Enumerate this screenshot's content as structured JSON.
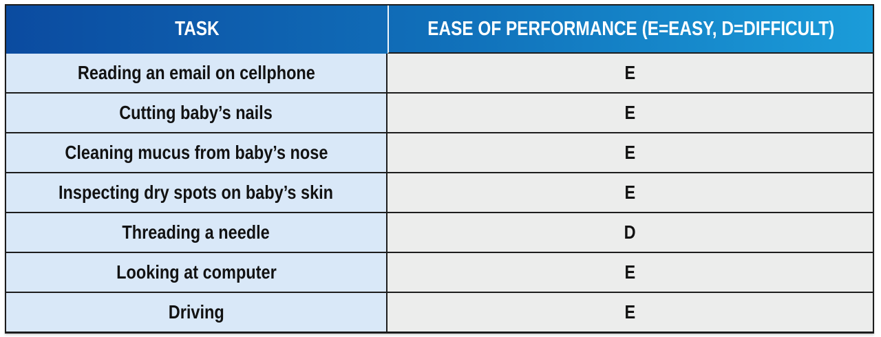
{
  "table": {
    "columns": [
      {
        "label": "TASK"
      },
      {
        "label": "EASE OF PERFORMANCE (E=EASY, D=DIFFICULT)"
      }
    ],
    "rows": [
      {
        "task": "Reading an email on cellphone",
        "ease": "E"
      },
      {
        "task": "Cutting baby’s nails",
        "ease": "E"
      },
      {
        "task": "Cleaning mucus from baby’s nose",
        "ease": "E"
      },
      {
        "task": "Inspecting dry spots on baby’s skin",
        "ease": "E"
      },
      {
        "task": "Threading a needle",
        "ease": "D"
      },
      {
        "task": "Looking at computer",
        "ease": "E"
      },
      {
        "task": "Driving",
        "ease": "E"
      }
    ],
    "colors": {
      "header_gradient_start": "#0b4ba0",
      "header_gradient_end": "#1b9cd9",
      "header_text": "#ffffff",
      "task_cell_bg": "#d9e8f8",
      "ease_cell_bg": "#ecedec",
      "border": "#1c1c1c",
      "body_text": "#121212"
    }
  },
  "chart_data": {
    "type": "table",
    "title": "",
    "columns": [
      "TASK",
      "EASE OF PERFORMANCE (E=EASY, D=DIFFICULT)"
    ],
    "rows": [
      [
        "Reading an email on cellphone",
        "E"
      ],
      [
        "Cutting baby’s nails",
        "E"
      ],
      [
        "Cleaning mucus from baby’s nose",
        "E"
      ],
      [
        "Inspecting dry spots on baby’s skin",
        "E"
      ],
      [
        "Threading a needle",
        "D"
      ],
      [
        "Looking at computer",
        "E"
      ],
      [
        "Driving",
        "E"
      ]
    ],
    "legend": {
      "E": "EASY",
      "D": "DIFFICULT"
    }
  }
}
